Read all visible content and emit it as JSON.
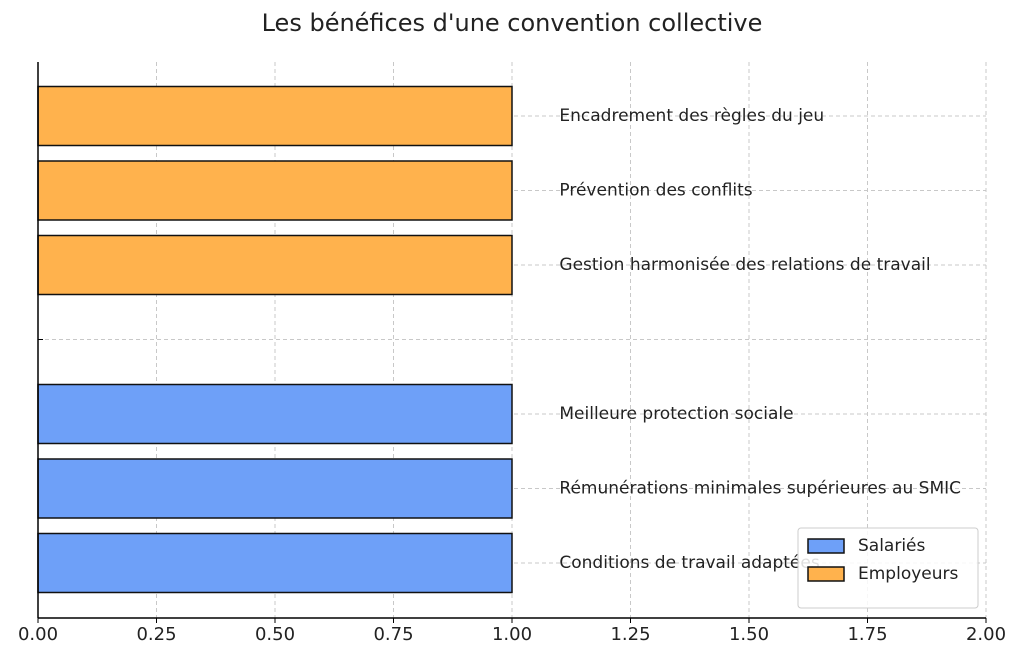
{
  "chart_data": {
    "type": "barh",
    "title": "Les bénéfices d'une convention collective",
    "categories": [
      "Conditions de travail adaptées",
      "Rémunérations minimales supérieures au SMIC",
      "Meilleure protection sociale",
      null,
      "Gestion harmonisée des relations de travail",
      "Prévention des conflits",
      "Encadrement des règles du jeu"
    ],
    "series": [
      {
        "name": "Salariés",
        "color": "#6ea0f8",
        "values": [
          1,
          1,
          1,
          null,
          null,
          null,
          null
        ]
      },
      {
        "name": "Employeurs",
        "color": "#ffb24d",
        "values": [
          null,
          null,
          null,
          null,
          1,
          1,
          1
        ]
      }
    ],
    "xlim": [
      0,
      2
    ],
    "xticks": [
      {
        "value": 0,
        "label": "0.00"
      },
      {
        "value": 0.25,
        "label": "0.25"
      },
      {
        "value": 0.5,
        "label": "0.50"
      },
      {
        "value": 0.75,
        "label": "0.75"
      },
      {
        "value": 1,
        "label": "1.00"
      },
      {
        "value": 1.25,
        "label": "1.25"
      },
      {
        "value": 1.5,
        "label": "1.50"
      },
      {
        "value": 1.75,
        "label": "1.75"
      },
      {
        "value": 2,
        "label": "2.00"
      }
    ],
    "grid": true,
    "legend": "lower right"
  }
}
